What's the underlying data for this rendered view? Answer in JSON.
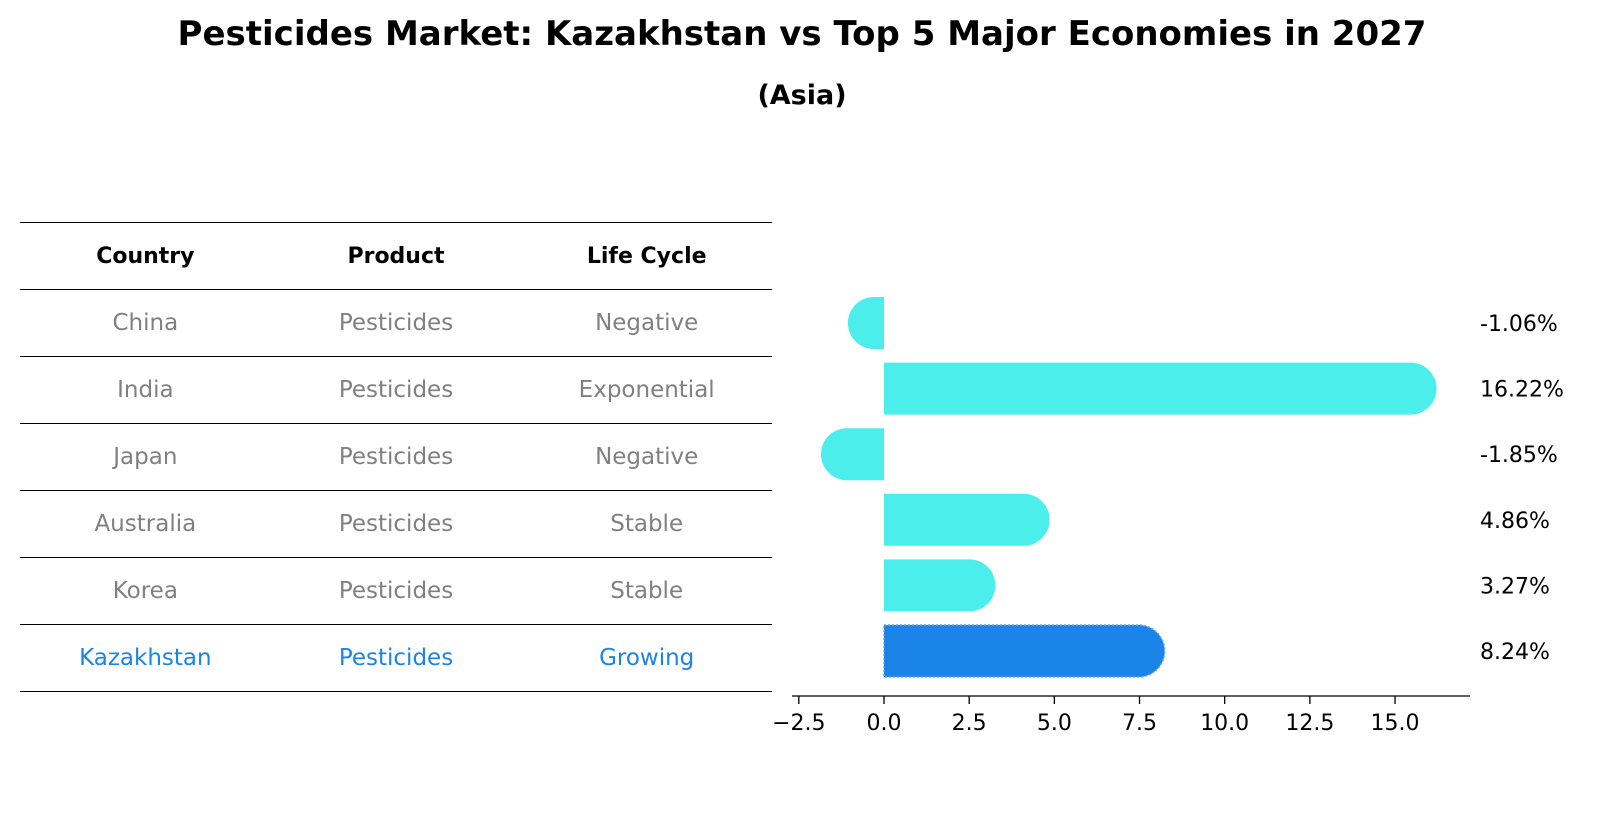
{
  "header": {
    "title": "Pesticides Market: Kazakhstan vs Top 5 Major Economies in 2027",
    "subtitle": "(Asia)"
  },
  "table": {
    "columns": [
      "Country",
      "Product",
      "Life Cycle"
    ],
    "rows": [
      {
        "country": "China",
        "product": "Pesticides",
        "life_cycle": "Negative"
      },
      {
        "country": "India",
        "product": "Pesticides",
        "life_cycle": "Exponential"
      },
      {
        "country": "Japan",
        "product": "Pesticides",
        "life_cycle": "Negative"
      },
      {
        "country": "Australia",
        "product": "Pesticides",
        "life_cycle": "Stable"
      },
      {
        "country": "Korea",
        "product": "Pesticides",
        "life_cycle": "Stable"
      },
      {
        "country": "Kazakhstan",
        "product": "Pesticides",
        "life_cycle": "Growing"
      }
    ],
    "colors": {
      "text": "#808080",
      "highlight": "#1a84e8",
      "header": "#000000"
    }
  },
  "chart_data": {
    "type": "bar",
    "orientation": "horizontal",
    "title": "Pesticides Market: Kazakhstan vs Top 5 Major Economies in 2027",
    "subtitle": "(Asia)",
    "categories": [
      "China",
      "India",
      "Japan",
      "Australia",
      "Korea",
      "Kazakhstan"
    ],
    "values": [
      -1.06,
      16.22,
      -1.85,
      4.86,
      3.27,
      8.24
    ],
    "value_labels": [
      "-1.06%",
      "16.22%",
      "-1.85%",
      "4.86%",
      "3.27%",
      "8.24%"
    ],
    "highlight": "Kazakhstan",
    "xlim": [
      -2.7,
      17.2
    ],
    "xticks": [
      -2.5,
      0.0,
      2.5,
      5.0,
      7.5,
      10.0,
      12.5,
      15.0
    ],
    "xtick_labels": [
      "−2.5",
      "0.0",
      "2.5",
      "5.0",
      "7.5",
      "10.0",
      "12.5",
      "15.0"
    ],
    "xlabel": "",
    "ylabel": "",
    "colors": {
      "bar": "#4ceeeb",
      "highlight": "#1a84e8",
      "axis": "#000000"
    }
  }
}
